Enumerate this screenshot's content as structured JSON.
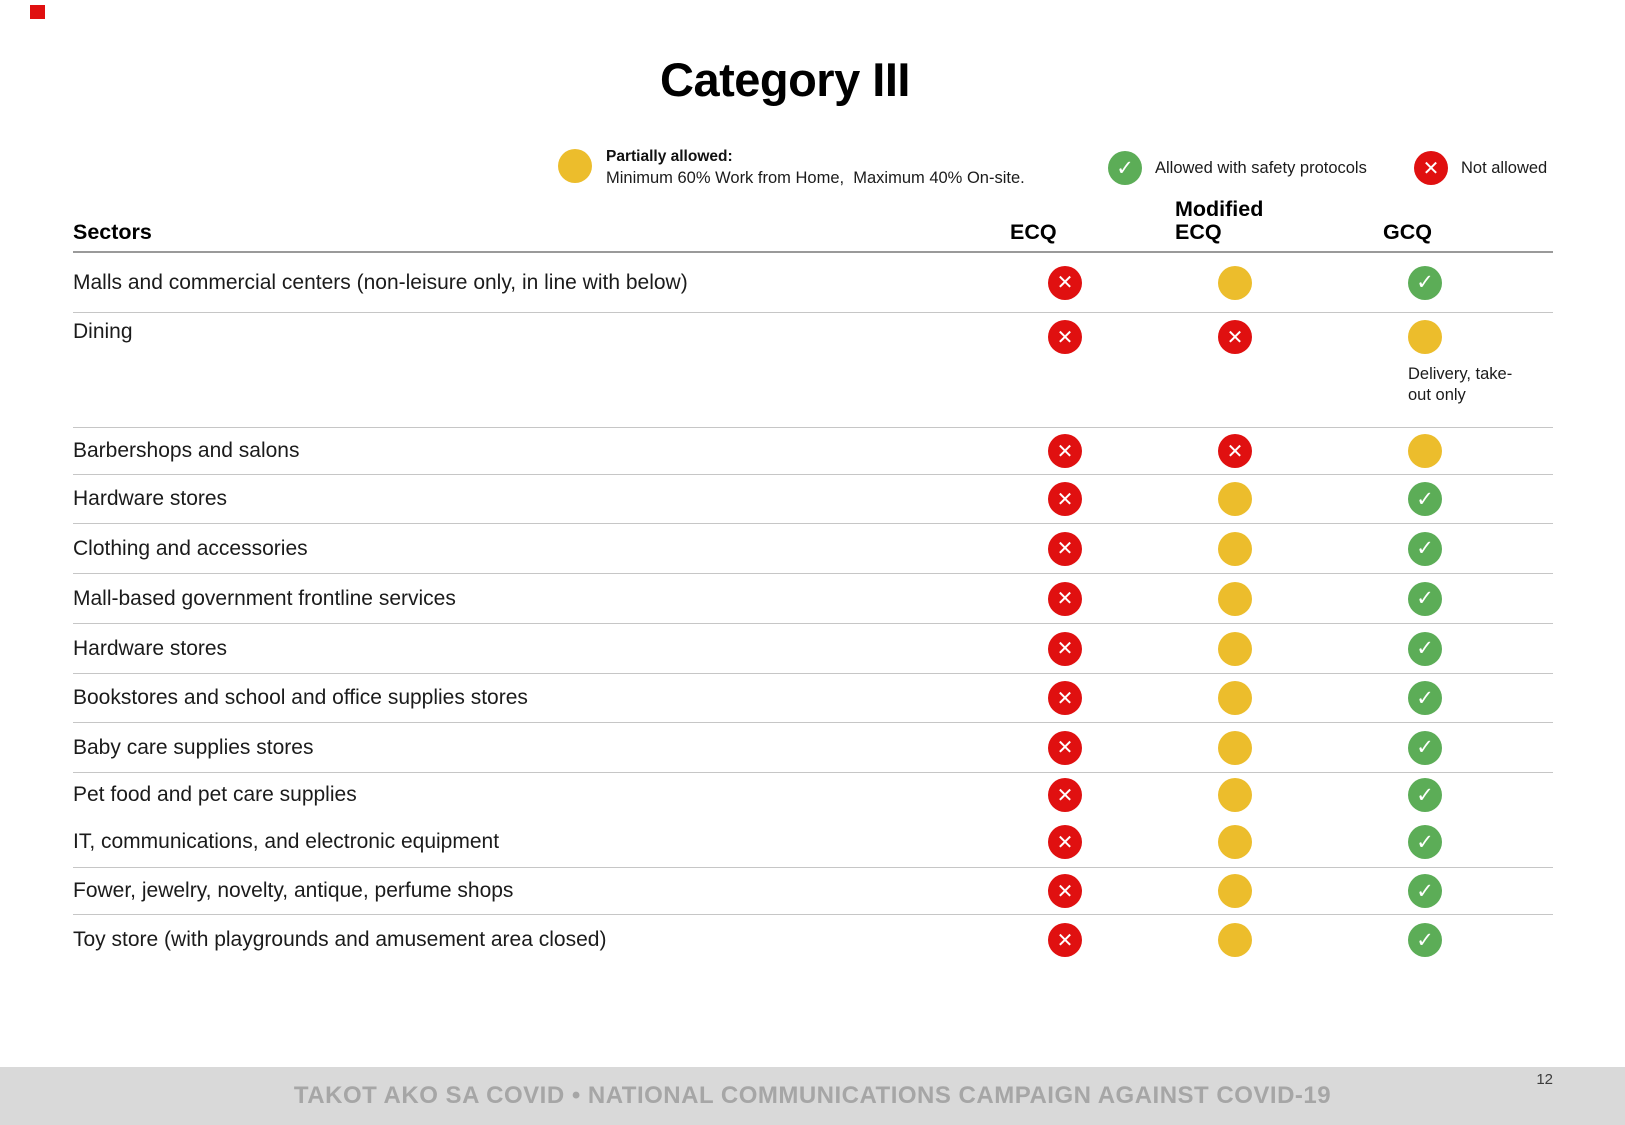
{
  "slide": {
    "title": "Category III",
    "page_number": "12",
    "footer": "TAKOT AKO SA COVID • NATIONAL COMMUNICATIONS CAMPAIGN AGAINST COVID-19"
  },
  "legend": {
    "partial": {
      "status": "partial",
      "title": "Partially allowed:",
      "description": "Minimum 60% Work from Home,  Maximum 40% On-site."
    },
    "allowed": {
      "status": "allowed",
      "label": "Allowed with safety protocols"
    },
    "not_allowed": {
      "status": "not_allowed",
      "label": "Not allowed"
    }
  },
  "colors": {
    "partial": "#ecbd2c",
    "allowed": "#5cad57",
    "not_allowed": "#e01010",
    "footer_bar": "#d9d9d9",
    "footer_text": "#a6a6a6"
  },
  "table": {
    "headers": {
      "sectors": "Sectors",
      "ecq": "ECQ",
      "mecq": "Modified ECQ",
      "gcq": "GCQ"
    },
    "rows": [
      {
        "label": "Malls and commercial centers (non-leisure only, in line with below)",
        "ecq": "not_allowed",
        "mecq": "partial",
        "gcq": "allowed"
      },
      {
        "label": "Dining",
        "ecq": "not_allowed",
        "mecq": "not_allowed",
        "gcq": "partial",
        "gcq_note": "Delivery, take-out only"
      },
      {
        "label": "Barbershops and salons",
        "ecq": "not_allowed",
        "mecq": "not_allowed",
        "gcq": "partial"
      },
      {
        "label": "Hardware stores",
        "ecq": "not_allowed",
        "mecq": "partial",
        "gcq": "allowed"
      },
      {
        "label": "Clothing and accessories",
        "ecq": "not_allowed",
        "mecq": "partial",
        "gcq": "allowed"
      },
      {
        "label": "Mall-based government frontline services",
        "ecq": "not_allowed",
        "mecq": "partial",
        "gcq": "allowed"
      },
      {
        "label": "Hardware stores",
        "ecq": "not_allowed",
        "mecq": "partial",
        "gcq": "allowed"
      },
      {
        "label": "Bookstores and school and office supplies stores",
        "ecq": "not_allowed",
        "mecq": "partial",
        "gcq": "allowed"
      },
      {
        "label": "Baby care supplies stores",
        "ecq": "not_allowed",
        "mecq": "partial",
        "gcq": "allowed"
      },
      {
        "label": "Pet food and pet care supplies",
        "ecq": "not_allowed",
        "mecq": "partial",
        "gcq": "allowed"
      },
      {
        "label": "IT, communications, and electronic equipment",
        "ecq": "not_allowed",
        "mecq": "partial",
        "gcq": "allowed"
      },
      {
        "label": "Fower, jewelry, novelty, antique, perfume shops",
        "ecq": "not_allowed",
        "mecq": "partial",
        "gcq": "allowed"
      },
      {
        "label": "Toy store (with playgrounds and amusement area closed)",
        "ecq": "not_allowed",
        "mecq": "partial",
        "gcq": "allowed"
      }
    ]
  }
}
